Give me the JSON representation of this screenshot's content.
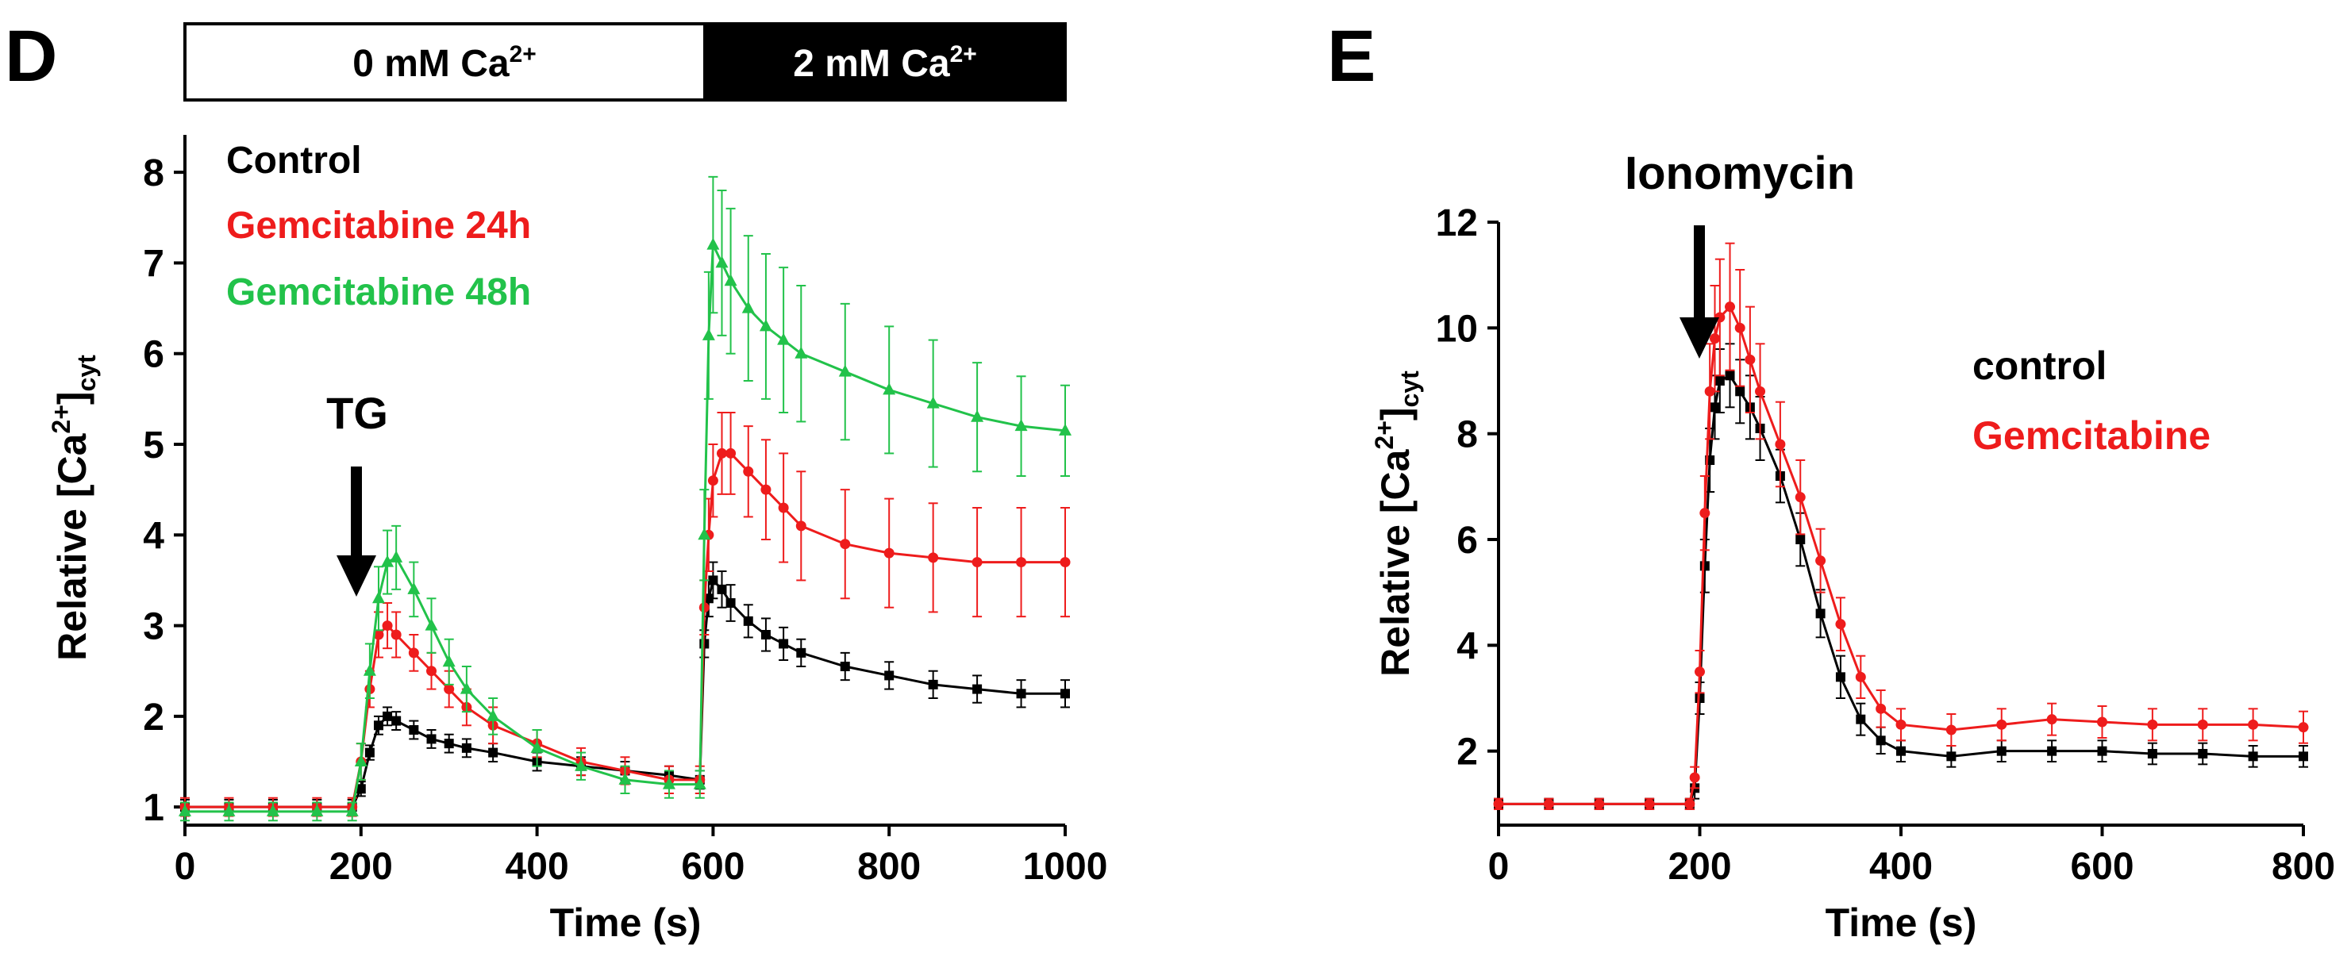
{
  "chart_data": [
    {
      "panel_label": "D",
      "type": "line",
      "title": "",
      "xlabel": "Time (s)",
      "ylabel_main": "Relative [Ca",
      "ylabel_sup": "2+",
      "ylabel_close": "]",
      "ylabel_sub": "cyt",
      "xlim": [
        0,
        1000
      ],
      "ylim": [
        0.8,
        8.5
      ],
      "xticks": [
        0,
        200,
        400,
        600,
        800,
        1000
      ],
      "yticks": [
        1,
        2,
        3,
        4,
        5,
        6,
        7,
        8
      ],
      "condition_bar": [
        {
          "label": "0 mM Ca",
          "sup": "2+",
          "fill": "#ffffff",
          "text_color": "#000000",
          "x_start": 0,
          "x_end": 590
        },
        {
          "label": "2 mM Ca",
          "sup": "2+",
          "fill": "#000000",
          "text_color": "#ffffff",
          "x_start": 590,
          "x_end": 1000
        }
      ],
      "annotations": [
        {
          "text": "TG",
          "arrow_x": 195,
          "arrow_y_tip": 3.2
        }
      ],
      "legend": [
        {
          "label": "Control",
          "color": "#000000"
        },
        {
          "label": "Gemcitabine 24h",
          "color": "#ee1c1c"
        },
        {
          "label": "Gemcitabine 48h",
          "color": "#22c24a"
        }
      ],
      "series": [
        {
          "name": "Control",
          "color": "#000000",
          "marker": "square",
          "x": [
            0,
            50,
            100,
            150,
            190,
            200,
            210,
            220,
            230,
            240,
            260,
            280,
            300,
            320,
            350,
            400,
            450,
            500,
            550,
            585,
            590,
            595,
            600,
            610,
            620,
            640,
            660,
            680,
            700,
            750,
            800,
            850,
            900,
            950,
            1000
          ],
          "y": [
            1.0,
            1.0,
            1.0,
            1.0,
            1.0,
            1.2,
            1.6,
            1.9,
            2.0,
            1.95,
            1.85,
            1.75,
            1.7,
            1.65,
            1.6,
            1.5,
            1.45,
            1.4,
            1.35,
            1.3,
            2.8,
            3.3,
            3.5,
            3.4,
            3.25,
            3.05,
            2.9,
            2.8,
            2.7,
            2.55,
            2.45,
            2.35,
            2.3,
            2.25,
            2.25
          ],
          "err": [
            0.08,
            0.08,
            0.08,
            0.08,
            0.08,
            0.08,
            0.08,
            0.1,
            0.1,
            0.1,
            0.1,
            0.1,
            0.1,
            0.1,
            0.1,
            0.1,
            0.1,
            0.1,
            0.1,
            0.1,
            0.15,
            0.2,
            0.2,
            0.2,
            0.2,
            0.18,
            0.18,
            0.18,
            0.15,
            0.15,
            0.15,
            0.15,
            0.15,
            0.15,
            0.15
          ]
        },
        {
          "name": "Gemcitabine 24h",
          "color": "#ee1c1c",
          "marker": "circle",
          "x": [
            0,
            50,
            100,
            150,
            190,
            200,
            210,
            220,
            230,
            240,
            260,
            280,
            300,
            320,
            350,
            400,
            450,
            500,
            550,
            585,
            590,
            595,
            600,
            610,
            620,
            640,
            660,
            680,
            700,
            750,
            800,
            850,
            900,
            950,
            1000
          ],
          "y": [
            1.0,
            1.0,
            1.0,
            1.0,
            1.0,
            1.5,
            2.3,
            2.9,
            3.0,
            2.9,
            2.7,
            2.5,
            2.3,
            2.1,
            1.9,
            1.7,
            1.5,
            1.4,
            1.3,
            1.3,
            3.2,
            4.0,
            4.6,
            4.9,
            4.9,
            4.7,
            4.5,
            4.3,
            4.1,
            3.9,
            3.8,
            3.75,
            3.7,
            3.7,
            3.7
          ],
          "err": [
            0.1,
            0.1,
            0.1,
            0.1,
            0.1,
            0.2,
            0.2,
            0.25,
            0.25,
            0.25,
            0.2,
            0.2,
            0.2,
            0.2,
            0.2,
            0.15,
            0.15,
            0.15,
            0.15,
            0.15,
            0.3,
            0.4,
            0.4,
            0.45,
            0.45,
            0.5,
            0.55,
            0.6,
            0.6,
            0.6,
            0.6,
            0.6,
            0.6,
            0.6,
            0.6
          ]
        },
        {
          "name": "Gemcitabine 48h",
          "color": "#22c24a",
          "marker": "triangle",
          "x": [
            0,
            50,
            100,
            150,
            190,
            200,
            210,
            220,
            230,
            240,
            260,
            280,
            300,
            320,
            350,
            400,
            450,
            500,
            550,
            585,
            590,
            595,
            600,
            610,
            620,
            640,
            660,
            680,
            700,
            750,
            800,
            850,
            900,
            950,
            1000
          ],
          "y": [
            0.95,
            0.95,
            0.95,
            0.95,
            0.95,
            1.5,
            2.5,
            3.3,
            3.7,
            3.75,
            3.4,
            3.0,
            2.6,
            2.3,
            2.0,
            1.65,
            1.45,
            1.3,
            1.25,
            1.25,
            4.0,
            6.2,
            7.2,
            7.0,
            6.8,
            6.5,
            6.3,
            6.15,
            6.0,
            5.8,
            5.6,
            5.45,
            5.3,
            5.2,
            5.15
          ],
          "err": [
            0.1,
            0.1,
            0.1,
            0.1,
            0.1,
            0.2,
            0.3,
            0.35,
            0.35,
            0.35,
            0.3,
            0.3,
            0.25,
            0.25,
            0.2,
            0.2,
            0.15,
            0.15,
            0.15,
            0.15,
            0.5,
            0.7,
            0.75,
            0.8,
            0.8,
            0.8,
            0.8,
            0.8,
            0.75,
            0.75,
            0.7,
            0.7,
            0.6,
            0.55,
            0.5
          ]
        }
      ]
    },
    {
      "panel_label": "E",
      "type": "line",
      "title": "",
      "xlabel": "Time (s)",
      "ylabel_main": "Relative [Ca",
      "ylabel_sup": "2+",
      "ylabel_close": "]",
      "ylabel_sub": "cyt",
      "xlim": [
        0,
        800
      ],
      "ylim": [
        0.6,
        12
      ],
      "xticks": [
        0,
        200,
        400,
        600,
        800
      ],
      "yticks": [
        2,
        4,
        6,
        8,
        10,
        12
      ],
      "annotations": [
        {
          "text": "Ionomycin",
          "arrow_x": 200,
          "arrow_y_tip": 9.5
        }
      ],
      "legend": [
        {
          "label": "control",
          "color": "#000000"
        },
        {
          "label": "Gemcitabine",
          "color": "#ee1c1c"
        }
      ],
      "series": [
        {
          "name": "control",
          "color": "#000000",
          "marker": "square",
          "x": [
            0,
            50,
            100,
            150,
            190,
            195,
            200,
            205,
            210,
            215,
            220,
            230,
            240,
            250,
            260,
            280,
            300,
            320,
            340,
            360,
            380,
            400,
            450,
            500,
            550,
            600,
            650,
            700,
            750,
            800
          ],
          "y": [
            1.0,
            1.0,
            1.0,
            1.0,
            1.0,
            1.3,
            3.0,
            5.5,
            7.5,
            8.5,
            9.0,
            9.1,
            8.8,
            8.5,
            8.1,
            7.2,
            6.0,
            4.6,
            3.4,
            2.6,
            2.2,
            2.0,
            1.9,
            2.0,
            2.0,
            2.0,
            1.95,
            1.95,
            1.9,
            1.9
          ],
          "err": [
            0.1,
            0.1,
            0.1,
            0.1,
            0.1,
            0.2,
            0.3,
            0.5,
            0.6,
            0.6,
            0.6,
            0.6,
            0.6,
            0.6,
            0.6,
            0.5,
            0.5,
            0.45,
            0.4,
            0.3,
            0.25,
            0.2,
            0.2,
            0.2,
            0.2,
            0.2,
            0.2,
            0.2,
            0.2,
            0.2
          ]
        },
        {
          "name": "Gemcitabine",
          "color": "#ee1c1c",
          "marker": "circle",
          "x": [
            0,
            50,
            100,
            150,
            190,
            195,
            200,
            205,
            210,
            215,
            220,
            230,
            240,
            250,
            260,
            280,
            300,
            320,
            340,
            360,
            380,
            400,
            450,
            500,
            550,
            600,
            650,
            700,
            750,
            800
          ],
          "y": [
            1.0,
            1.0,
            1.0,
            1.0,
            1.0,
            1.5,
            3.5,
            6.5,
            8.8,
            9.8,
            10.2,
            10.4,
            10.0,
            9.4,
            8.8,
            7.8,
            6.8,
            5.6,
            4.4,
            3.4,
            2.8,
            2.5,
            2.4,
            2.5,
            2.6,
            2.55,
            2.5,
            2.5,
            2.5,
            2.45
          ],
          "err": [
            0.1,
            0.1,
            0.1,
            0.1,
            0.1,
            0.2,
            0.4,
            0.7,
            0.9,
            1.0,
            1.1,
            1.2,
            1.1,
            1.0,
            0.9,
            0.8,
            0.7,
            0.6,
            0.5,
            0.4,
            0.35,
            0.3,
            0.3,
            0.3,
            0.3,
            0.3,
            0.3,
            0.3,
            0.3,
            0.3
          ]
        }
      ]
    }
  ]
}
